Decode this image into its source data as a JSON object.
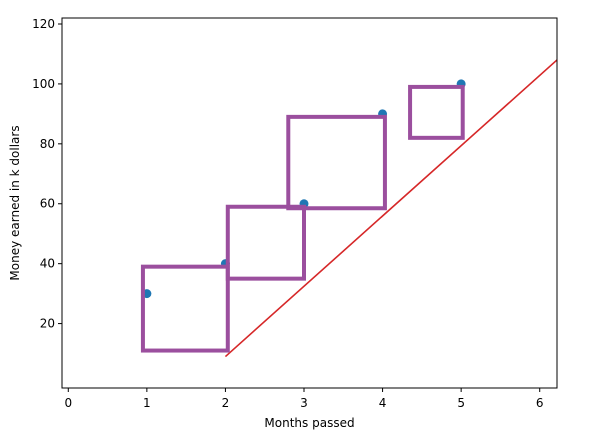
{
  "chart_data": {
    "type": "scatter",
    "title": "",
    "xlabel": "Months passed",
    "ylabel": "Money earned in k dollars",
    "xlim": [
      -0.08,
      6.22
    ],
    "ylim": [
      -1.5,
      122
    ],
    "x_ticks": [
      0,
      1,
      2,
      3,
      4,
      5,
      6
    ],
    "y_ticks": [
      20,
      40,
      60,
      80,
      100,
      120
    ],
    "grid": false,
    "legend": "none",
    "series": [
      {
        "type": "scatter",
        "color": "#1f77b4",
        "points": [
          {
            "x": 1,
            "y": 30
          },
          {
            "x": 2,
            "y": 40
          },
          {
            "x": 3,
            "y": 60
          },
          {
            "x": 4,
            "y": 90
          },
          {
            "x": 5,
            "y": 100
          }
        ]
      },
      {
        "type": "line",
        "color": "#d62728",
        "points": [
          {
            "x": 2,
            "y": 9
          },
          {
            "x": 6.22,
            "y": 108
          }
        ]
      }
    ],
    "rectangles": {
      "color": "#9b4f9e",
      "items": [
        {
          "x0": 0.95,
          "x1": 2.03,
          "y0": 11,
          "y1": 39
        },
        {
          "x0": 2.03,
          "x1": 3.0,
          "y0": 35,
          "y1": 59
        },
        {
          "x0": 2.8,
          "x1": 4.03,
          "y0": 58.5,
          "y1": 89
        },
        {
          "x0": 4.35,
          "x1": 5.02,
          "y0": 82,
          "y1": 99
        }
      ]
    }
  }
}
